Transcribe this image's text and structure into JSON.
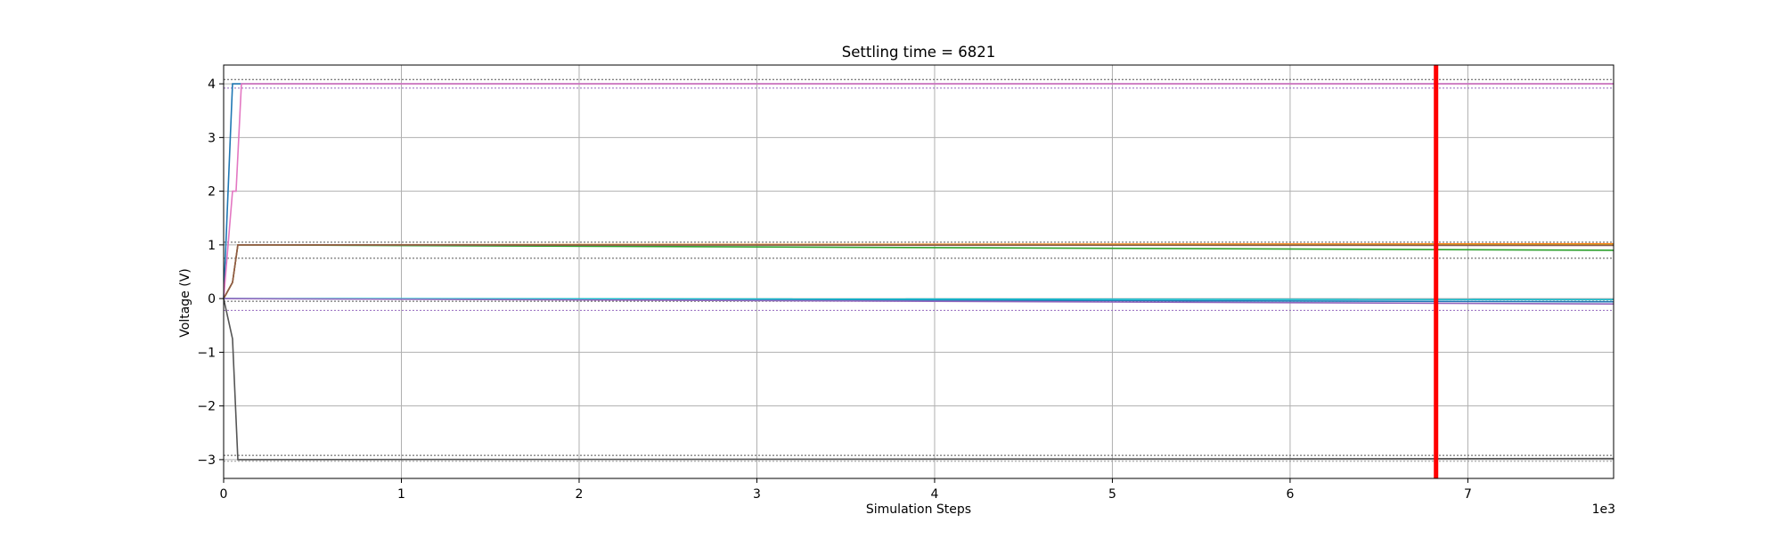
{
  "chart_data": {
    "type": "line",
    "title": "Settling time = 6821",
    "xlabel": "Simulation Steps",
    "ylabel": "Voltage (V)",
    "x_offset_label": "1e3",
    "xlim": [
      0,
      7820
    ],
    "ylim": [
      -3.35,
      4.35
    ],
    "grid": true,
    "x_ticks": [
      0,
      1000,
      2000,
      3000,
      4000,
      5000,
      6000,
      7000
    ],
    "x_tick_labels": [
      "0",
      "1",
      "2",
      "3",
      "4",
      "5",
      "6",
      "7"
    ],
    "y_ticks": [
      4,
      3,
      2,
      1,
      0,
      -1,
      -2,
      -3
    ],
    "y_tick_labels": [
      "4",
      "3",
      "2",
      "1",
      "0",
      "−1",
      "−2",
      "−3"
    ],
    "settling_time": 6821,
    "settling_line_color": "#ff0000",
    "series": [
      {
        "color": "#1f77b4",
        "x": [
          0,
          50,
          100,
          7820
        ],
        "y": [
          0,
          4,
          4,
          4
        ]
      },
      {
        "color": "#e377c2",
        "x": [
          0,
          50,
          70,
          100,
          7820
        ],
        "y": [
          0,
          2,
          2,
          4,
          4
        ]
      },
      {
        "color": "#2ca02c",
        "x": [
          0,
          50,
          80,
          7820
        ],
        "y": [
          0,
          0.3,
          1,
          0.9
        ]
      },
      {
        "color": "#ff7f0e",
        "x": [
          0,
          50,
          80,
          7820
        ],
        "y": [
          0,
          0.3,
          1,
          1.02
        ]
      },
      {
        "color": "#bcbd22",
        "x": [
          0,
          50,
          80,
          7820
        ],
        "y": [
          0,
          0.3,
          1,
          1.0
        ]
      },
      {
        "color": "#8c564b",
        "x": [
          0,
          50,
          80,
          7820
        ],
        "y": [
          0,
          0.3,
          1,
          0.99
        ]
      },
      {
        "color": "#1f77b4",
        "x": [
          0,
          7820
        ],
        "y": [
          0,
          -0.06
        ]
      },
      {
        "color": "#17becf",
        "x": [
          0,
          7820
        ],
        "y": [
          0,
          -0.02
        ]
      },
      {
        "color": "#9467bd",
        "x": [
          0,
          7820
        ],
        "y": [
          0,
          -0.1
        ]
      },
      {
        "color": "#555555",
        "x": [
          0,
          50,
          80,
          7820
        ],
        "y": [
          0,
          -0.75,
          -3,
          -2.98
        ]
      }
    ],
    "reference_lines": [
      {
        "y": 4.08,
        "color": "#555555"
      },
      {
        "y": 3.92,
        "color": "#9467bd"
      },
      {
        "y": 1.05,
        "color": "#555555"
      },
      {
        "y": 0.75,
        "color": "#555555"
      },
      {
        "y": -0.05,
        "color": "#555555"
      },
      {
        "y": -0.22,
        "color": "#9467bd"
      },
      {
        "y": -2.92,
        "color": "#555555"
      },
      {
        "y": -3.03,
        "color": "#999999"
      }
    ]
  }
}
